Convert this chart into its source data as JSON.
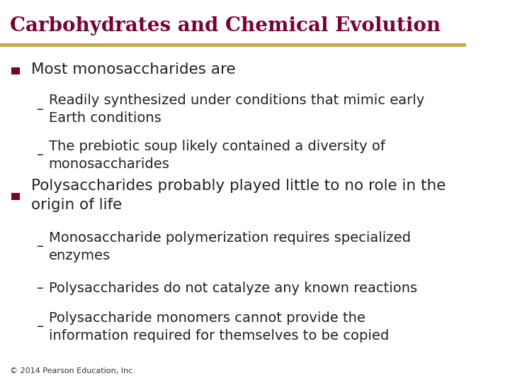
{
  "title": "Carbohydrates and Chemical Evolution",
  "title_color": "#7B0032",
  "title_fontsize": 20,
  "divider_color": "#C8A84B",
  "background_color": "#FFFFFF",
  "bullet_color": "#7B0032",
  "text_color": "#222222",
  "footer": "© 2014 Pearson Education, Inc.",
  "bullet1": "Most monosaccharides are",
  "sub1a": "Readily synthesized under conditions that mimic early\nEarth conditions",
  "sub1b": "The prebiotic soup likely contained a diversity of\nmonosaccharides",
  "bullet2": "Polysaccharides probably played little to no role in the\norigin of life",
  "sub2a": "Monosaccharide polymerization requires specialized\nenzymes",
  "sub2b": "Polysaccharides do not catalyze any known reactions",
  "sub2c": "Polysaccharide monomers cannot provide the\ninformation required for themselves to be copied"
}
